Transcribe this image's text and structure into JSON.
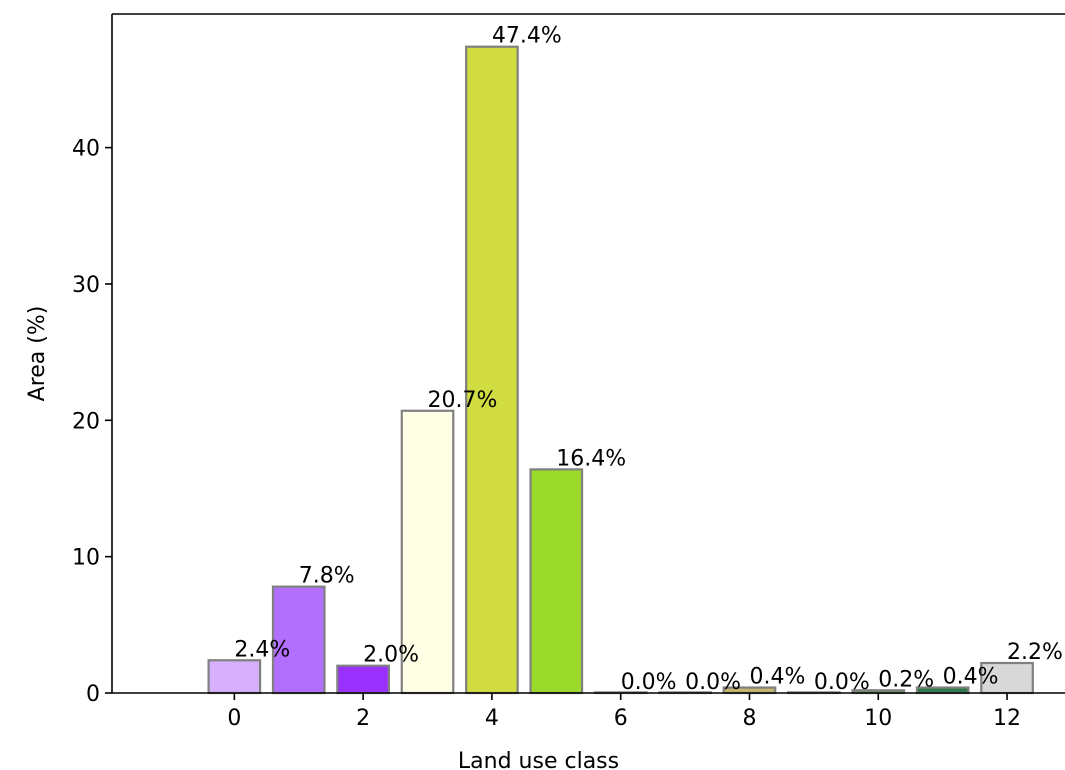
{
  "chart_data": {
    "type": "bar",
    "xlabel": "Land use class",
    "ylabel": "Area (%)",
    "x": [
      0,
      1,
      2,
      3,
      4,
      5,
      6,
      7,
      8,
      9,
      10,
      11,
      12
    ],
    "values": [
      2.4,
      7.8,
      2.0,
      20.7,
      47.4,
      16.4,
      0.0,
      0.0,
      0.4,
      0.0,
      0.2,
      0.4,
      2.2
    ],
    "labels": [
      "2.4%",
      "7.8%",
      "2.0%",
      "20.7%",
      "47.4%",
      "16.4%",
      "0.0%",
      "0.0%",
      "0.4%",
      "0.0%",
      "0.2%",
      "0.4%",
      "2.2%"
    ],
    "colors": [
      "#d6b0fd",
      "#b26efd",
      "#9a30fe",
      "#ffffe6",
      "#d0dc40",
      "#9bd92a",
      "#ffff9a",
      "#d8d8d8",
      "#c4b76a",
      "#a0a0a0",
      "#56a060",
      "#2c7a4a",
      "#d8d8d8"
    ],
    "edge_color": "#808080",
    "xticks": [
      0,
      2,
      4,
      6,
      8,
      10,
      12
    ],
    "yticks": [
      0,
      10,
      20,
      30,
      40
    ],
    "xlim": [
      -1.9,
      12.9
    ],
    "ylim": [
      0,
      49.8
    ],
    "grid": false
  }
}
